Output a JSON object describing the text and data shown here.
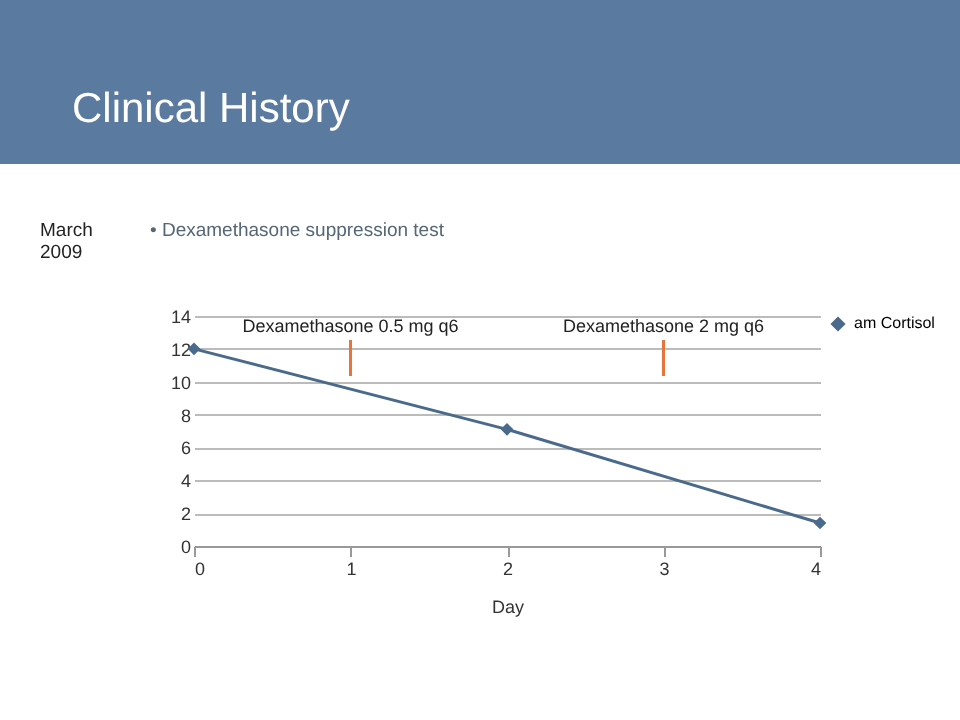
{
  "chart_data": {
    "type": "line",
    "title": "Clinical History",
    "xlabel": "Day",
    "x": [
      0,
      2,
      4
    ],
    "series": [
      {
        "name": "am Cortisol",
        "color": "#4a6a8c",
        "values": [
          12,
          7.1,
          1.4
        ]
      }
    ],
    "xlim": [
      0,
      4
    ],
    "xticks": [
      0,
      1,
      2,
      3,
      4
    ],
    "ylim": [
      0,
      14
    ],
    "yticks": [
      0,
      2,
      4,
      6,
      8,
      10,
      12,
      14
    ],
    "grid": "y",
    "legend": "right",
    "marker": "diamond",
    "line_style": "solid",
    "annotations": [
      "March 2009",
      "• Dexamethasone suppression test"
    ],
    "ref_lines": [
      {
        "axis": "x",
        "value": 1,
        "label": "Dexamethasone 0.5 mg q6",
        "color": "#e8743b"
      },
      {
        "axis": "x",
        "value": 3,
        "label": "Dexamethasone 2 mg q6",
        "color": "#e8743b"
      }
    ]
  }
}
